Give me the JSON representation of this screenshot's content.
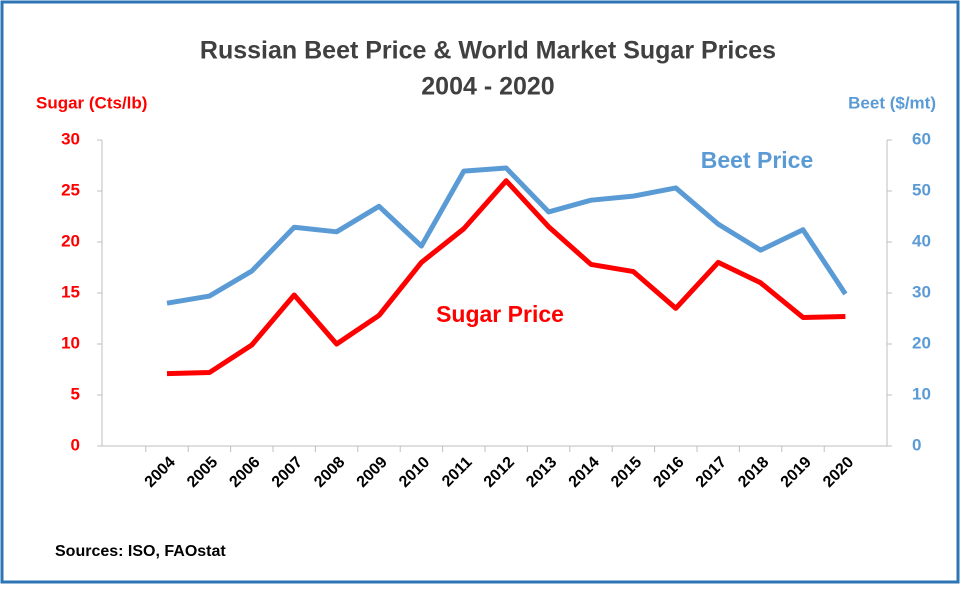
{
  "chart_data": {
    "type": "line",
    "title": "Russian Beet Price & World Market Sugar Prices",
    "subtitle": "2004 - 2020",
    "y_label": "Sugar (Cts/lb)",
    "y2_label": "Beet ($/mt)",
    "categories": [
      "2004",
      "2005",
      "2006",
      "2007",
      "2008",
      "2009",
      "2010",
      "2011",
      "2012",
      "2013",
      "2014",
      "2015",
      "2016",
      "2017",
      "2018",
      "2019",
      "2020"
    ],
    "series": [
      {
        "name": "Sugar Price",
        "color": "#ff0000",
        "axis": "y",
        "values": [
          7.1,
          7.2,
          9.9,
          14.8,
          10.0,
          12.8,
          18.0,
          21.3,
          26.0,
          21.5,
          17.8,
          17.1,
          13.5,
          18.0,
          16.0,
          12.6,
          12.7
        ]
      },
      {
        "name": "Beet Price",
        "color": "#5b9bd5",
        "axis": "y2",
        "values": [
          28.0,
          29.4,
          34.3,
          42.9,
          42.0,
          47.0,
          39.2,
          53.9,
          54.5,
          45.9,
          48.2,
          49.0,
          50.6,
          43.5,
          38.4,
          42.4,
          29.8
        ]
      }
    ],
    "ylim": [
      0,
      30
    ],
    "yticks": [
      0,
      5,
      10,
      15,
      20,
      25,
      30
    ],
    "y2lim": [
      0,
      60
    ],
    "y2ticks": [
      0,
      10,
      20,
      30,
      40,
      50,
      60
    ],
    "source": "Sources: ISO, FAOstat"
  }
}
